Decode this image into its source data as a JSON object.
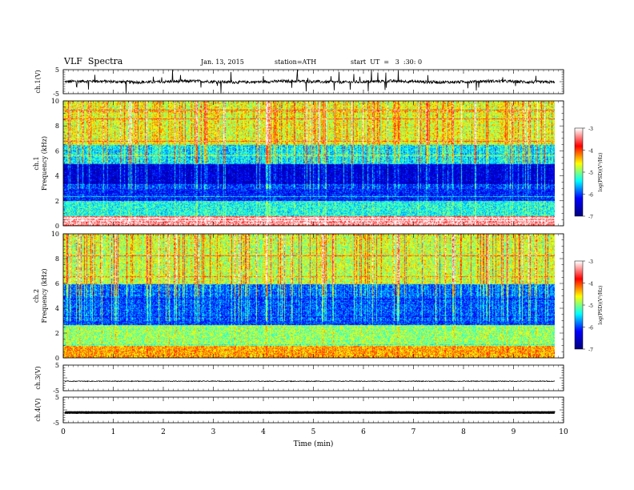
{
  "header": {
    "title": "VLF  Spectra",
    "date": "Jan. 13, 2015",
    "station": "station=ATH",
    "start": "start  UT  =   3  :30: 0"
  },
  "chart_data": {
    "type": "spectrogram",
    "xlabel": "Time  (min)",
    "x_ticks": [
      "0",
      "1",
      "2",
      "3",
      "4",
      "5",
      "6",
      "7",
      "8",
      "9",
      "10"
    ],
    "xlim": [
      0,
      10
    ],
    "data_end_min": 9.82,
    "colormap": [
      "#000080",
      "#0000ff",
      "#00ffff",
      "#ffff00",
      "#ff0000",
      "#ffffff"
    ],
    "panels": [
      {
        "type": "line",
        "ylabel": "ch.1(V)",
        "y_ticks": [
          "5",
          "-5"
        ],
        "ylim": [
          -5,
          5
        ],
        "baseline": 0,
        "noise_amplitude": 0.6,
        "spike_amplitude": 4.5
      },
      {
        "type": "heatmap",
        "ylabel_top": "ch.1",
        "ylabel": "Frequency  (kHz)",
        "y_ticks": [
          "0",
          "2",
          "4",
          "6",
          "8",
          "10"
        ],
        "ylim": [
          0,
          10
        ],
        "colorbar": {
          "label": "log(PSD)(V²/Hz)",
          "ticks": [
            "-3",
            "-4",
            "-5",
            "-6",
            "-7"
          ],
          "range": [
            -7,
            -3
          ]
        },
        "bands_kHz": [
          {
            "from": 0.0,
            "to": 0.8,
            "level": -3.4
          },
          {
            "from": 0.8,
            "to": 2.0,
            "level": -5.4
          },
          {
            "from": 2.0,
            "to": 3.3,
            "level": -6.2
          },
          {
            "from": 3.3,
            "to": 5.0,
            "level": -6.6
          },
          {
            "from": 5.0,
            "to": 6.5,
            "level": -5.7
          },
          {
            "from": 6.5,
            "to": 10.0,
            "level": -4.9
          }
        ]
      },
      {
        "type": "heatmap",
        "ylabel_top": "ch.2",
        "ylabel": "Frequency  (kHz)",
        "y_ticks": [
          "0",
          "2",
          "4",
          "6",
          "8",
          "10"
        ],
        "ylim": [
          0,
          10
        ],
        "colorbar": {
          "label": "log(PSD)(V²/Hz)",
          "ticks": [
            "-3",
            "-4",
            "-5",
            "-6",
            "-7"
          ],
          "range": [
            -7,
            -3
          ]
        },
        "bands_kHz": [
          {
            "from": 0.0,
            "to": 1.0,
            "level": -4.4
          },
          {
            "from": 1.0,
            "to": 2.7,
            "level": -5.0
          },
          {
            "from": 2.7,
            "to": 6.0,
            "level": -6.1
          },
          {
            "from": 6.0,
            "to": 10.0,
            "level": -5.0
          }
        ]
      },
      {
        "type": "line",
        "ylabel": "ch.3(V)",
        "y_ticks": [
          "5",
          "-5"
        ],
        "ylim": [
          -5,
          5
        ],
        "baseline": -1.3,
        "noise_amplitude": 0.15,
        "spike_amplitude": 0
      },
      {
        "type": "line",
        "ylabel": "ch.4(V)",
        "y_ticks": [
          "5",
          "-5"
        ],
        "ylim": [
          -5,
          5
        ],
        "baseline": -1.0,
        "noise_amplitude": 0.05,
        "spike_amplitude": 0
      }
    ]
  }
}
